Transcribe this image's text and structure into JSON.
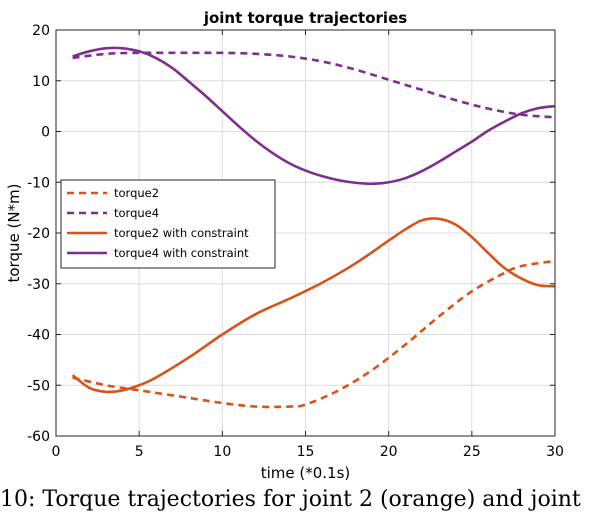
{
  "chart_data": {
    "type": "line",
    "title": "joint torque trajectories",
    "xlabel": "time (*0.1s)",
    "ylabel": "torque (N*m)",
    "xlim": [
      0,
      30
    ],
    "ylim": [
      -60,
      20
    ],
    "xticks": [
      0,
      5,
      10,
      15,
      20,
      25,
      30
    ],
    "yticks": [
      -60,
      -50,
      -40,
      -30,
      -20,
      -10,
      0,
      10,
      20
    ],
    "grid": true,
    "legend_position": "center-left",
    "colors": {
      "orange": "#d95319",
      "purple": "#7e2f8e"
    },
    "series": [
      {
        "name": "torque2",
        "color": "#d95319",
        "style": "dashed",
        "x": [
          1,
          3,
          5,
          8,
          10,
          12,
          14,
          15,
          17,
          19,
          21,
          23,
          25,
          27,
          28,
          30
        ],
        "y": [
          -48.5,
          -50.0,
          -51.0,
          -52.5,
          -53.5,
          -54.2,
          -54.2,
          -53.8,
          -51.0,
          -47.0,
          -42.0,
          -36.5,
          -31.5,
          -27.8,
          -26.5,
          -25.5
        ]
      },
      {
        "name": "torque4",
        "color": "#7e2f8e",
        "style": "dashed",
        "x": [
          1,
          3,
          5,
          8,
          10,
          12,
          14,
          16,
          18,
          20,
          22,
          24,
          26,
          28,
          30
        ],
        "y": [
          14.5,
          15.3,
          15.5,
          15.5,
          15.5,
          15.3,
          14.8,
          13.8,
          12.2,
          10.2,
          8.2,
          6.2,
          4.5,
          3.3,
          2.8
        ]
      },
      {
        "name": "torque2 with constraint",
        "color": "#d95319",
        "style": "solid",
        "x": [
          1,
          2,
          3,
          4,
          5,
          6,
          8,
          10,
          12,
          14,
          16,
          18,
          20,
          21,
          22,
          23,
          24,
          25,
          26,
          27,
          28,
          29,
          30
        ],
        "y": [
          -48.0,
          -50.5,
          -51.3,
          -51.0,
          -50.0,
          -48.5,
          -44.5,
          -40.0,
          -36.0,
          -33.0,
          -29.8,
          -26.0,
          -21.5,
          -19.3,
          -17.5,
          -17.2,
          -18.3,
          -20.8,
          -24.0,
          -27.0,
          -29.0,
          -30.3,
          -30.5
        ]
      },
      {
        "name": "torque4 with constraint",
        "color": "#7e2f8e",
        "style": "solid",
        "x": [
          1,
          2,
          3,
          4,
          5,
          6,
          7,
          8,
          9,
          10,
          11,
          12,
          13,
          14,
          15,
          16,
          17,
          18,
          19,
          20,
          21,
          22,
          23,
          24,
          25,
          26,
          27,
          28,
          29,
          30
        ],
        "y": [
          14.8,
          15.8,
          16.4,
          16.4,
          15.8,
          14.5,
          12.5,
          9.8,
          7.0,
          4.0,
          1.0,
          -1.8,
          -4.2,
          -6.2,
          -7.7,
          -8.8,
          -9.6,
          -10.1,
          -10.3,
          -10.0,
          -9.2,
          -7.8,
          -6.0,
          -4.0,
          -2.0,
          0.2,
          2.0,
          3.6,
          4.6,
          5.0
        ]
      }
    ]
  },
  "caption": "10: Torque trajectories for joint 2 (orange) and joint"
}
